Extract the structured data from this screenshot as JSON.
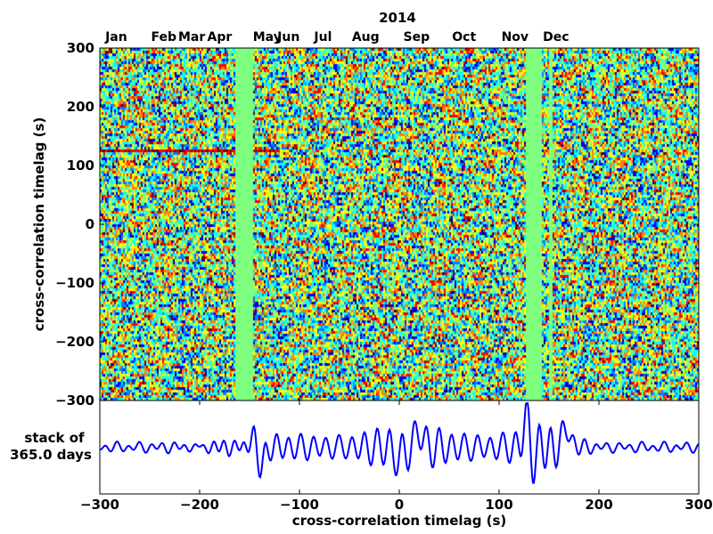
{
  "chart_data": [
    {
      "type": "heatmap",
      "title": "2014",
      "xlabel": "",
      "ylabel": "cross-correlation timelag (s)",
      "ylim": [
        -300,
        300
      ],
      "y_ticks": [
        "300",
        "200",
        "100",
        "0",
        "−100",
        "−200",
        "−300"
      ],
      "y_tick_values": [
        300,
        200,
        100,
        0,
        -100,
        -200,
        -300
      ],
      "months": [
        "Jan",
        "Feb",
        "Mar",
        "Apr",
        "May",
        "Jun",
        "Jul",
        "Aug",
        "Sep",
        "Oct",
        "Nov",
        "Dec"
      ],
      "month_day_positions": [
        10,
        39,
        56,
        73,
        102,
        115,
        136,
        162,
        193,
        222,
        253,
        278
      ],
      "x_range_days": [
        0,
        365
      ],
      "data_gaps_days": [
        [
          83,
          93
        ],
        [
          260,
          269
        ],
        [
          274,
          276
        ]
      ],
      "strong_signal_timelag": 125,
      "colormap": [
        "#00007f",
        "#0000ff",
        "#007fff",
        "#00ffff",
        "#7fff7f",
        "#ffff00",
        "#ff7f00",
        "#ff0000",
        "#7f0000"
      ],
      "gap_color": "#7fff7f"
    },
    {
      "type": "line",
      "ylabel_lines": [
        "stack of",
        "365.0 days"
      ],
      "xlabel": "cross-correlation timelag (s)",
      "xlim": [
        -300,
        300
      ],
      "x_ticks": [
        "−300",
        "−200",
        "−100",
        "0",
        "100",
        "200",
        "300"
      ],
      "x_tick_values": [
        -300,
        -200,
        -100,
        0,
        100,
        200,
        300
      ],
      "line_color": "#0000ff",
      "peaks": [
        {
          "x": -145,
          "y": 0.55
        },
        {
          "x": -140,
          "y": -0.8
        },
        {
          "x": 128,
          "y": 1.0
        },
        {
          "x": 133,
          "y": -0.55
        },
        {
          "x": 168,
          "y": 0.6
        },
        {
          "x": 20,
          "y": 0.5
        },
        {
          "x": 0,
          "y": -0.4
        }
      ]
    }
  ]
}
